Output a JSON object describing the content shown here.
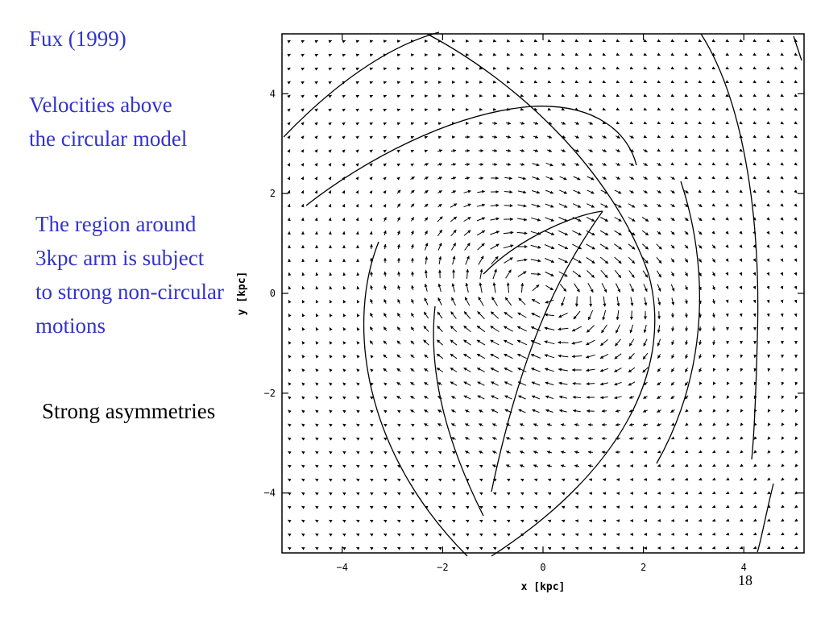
{
  "slide": {
    "title": "Fux (1999)",
    "subtitle_line1": "Velocities above",
    "subtitle_line2": "the circular model",
    "region_line1": "The region around",
    "region_line2": "3kpc arm is subject",
    "region_line3": "to strong non-circular",
    "region_line4": "motions",
    "asymmetry_note": "Strong asymmetries",
    "page_number": "18"
  },
  "colors": {
    "text_blue": "#3333cc",
    "text_black": "#000000",
    "plot_ink": "#000000"
  },
  "plot": {
    "xlabel": "x [kpc]",
    "ylabel": "y [kpc]",
    "xlim": [
      -5.2,
      5.2
    ],
    "ylim": [
      -5.2,
      5.2
    ],
    "xticks": [
      {
        "value": -4,
        "label": "−4"
      },
      {
        "value": -2,
        "label": "−2"
      },
      {
        "value": 0,
        "label": "0"
      },
      {
        "value": 2,
        "label": "2"
      },
      {
        "value": 4,
        "label": "4"
      }
    ],
    "yticks": [
      {
        "value": -4,
        "label": "−4"
      },
      {
        "value": -2,
        "label": "−2"
      },
      {
        "value": 0,
        "label": "0"
      },
      {
        "value": 2,
        "label": "2"
      },
      {
        "value": 4,
        "label": "4"
      }
    ]
  }
}
